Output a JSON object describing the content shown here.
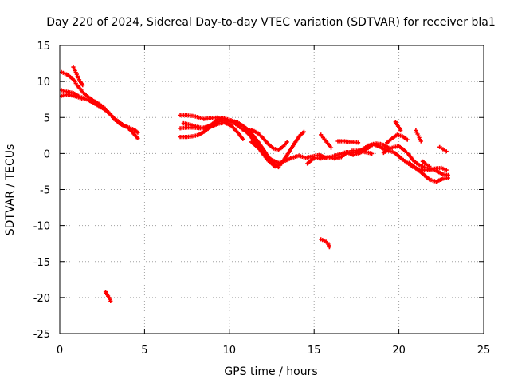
{
  "chart_data": {
    "type": "scatter",
    "title": "Day 220 of 2024, Sidereal Day-to-day VTEC variation (SDTVAR) for receiver bla1",
    "xlabel": "GPS time / hours",
    "ylabel": "SDTVAR / TECUs",
    "xlim": [
      0,
      25
    ],
    "ylim": [
      -25,
      15
    ],
    "xticks": [
      0,
      5,
      10,
      15,
      20,
      25
    ],
    "yticks": [
      15,
      10,
      5,
      0,
      -5,
      -10,
      -15,
      -20,
      -25
    ],
    "xtick_labels": [
      "0",
      "5",
      "10",
      "15",
      "20",
      "25"
    ],
    "ytick_labels": [
      "15",
      "10",
      "5",
      "0",
      "-5",
      "-10",
      "-15",
      "-20",
      "-25"
    ],
    "grid": true,
    "marker": "plus",
    "series": [
      {
        "name": "SDTVAR",
        "color": "#ff0000",
        "tracks": [
          [
            [
              0.1,
              11.3
            ],
            [
              0.4,
              11.0
            ],
            [
              0.7,
              10.5
            ],
            [
              0.9,
              10.0
            ],
            [
              1.0,
              9.5
            ],
            [
              1.2,
              9.0
            ],
            [
              1.4,
              8.4
            ],
            [
              1.7,
              7.8
            ],
            [
              2.0,
              7.3
            ],
            [
              2.3,
              6.9
            ],
            [
              2.6,
              6.4
            ],
            [
              2.8,
              5.9
            ],
            [
              3.0,
              5.4
            ],
            [
              3.2,
              4.8
            ],
            [
              3.5,
              4.2
            ],
            [
              3.8,
              3.8
            ],
            [
              4.1,
              3.6
            ],
            [
              4.4,
              3.3
            ],
            [
              4.6,
              2.9
            ]
          ],
          [
            [
              0.1,
              8.8
            ],
            [
              0.4,
              8.6
            ],
            [
              0.8,
              8.4
            ],
            [
              1.1,
              8.0
            ],
            [
              1.4,
              7.7
            ],
            [
              1.7,
              7.4
            ],
            [
              2.0,
              7.0
            ],
            [
              2.3,
              6.6
            ],
            [
              2.6,
              6.2
            ],
            [
              2.9,
              5.6
            ],
            [
              3.2,
              4.9
            ],
            [
              3.6,
              4.2
            ],
            [
              4.0,
              3.6
            ],
            [
              4.3,
              2.9
            ],
            [
              4.6,
              2.1
            ]
          ],
          [
            [
              0.1,
              8.0
            ],
            [
              0.5,
              8.2
            ],
            [
              0.8,
              8.0
            ],
            [
              1.0,
              7.9
            ],
            [
              1.3,
              7.6
            ]
          ],
          [
            [
              0.8,
              12.0
            ],
            [
              0.9,
              11.5
            ],
            [
              1.0,
              11.0
            ],
            [
              1.1,
              10.5
            ],
            [
              1.2,
              10.0
            ],
            [
              1.35,
              9.5
            ]
          ],
          [
            [
              2.7,
              -19.2
            ],
            [
              2.8,
              -19.6
            ],
            [
              2.9,
              -20.0
            ],
            [
              3.0,
              -20.5
            ]
          ],
          [
            [
              7.1,
              5.3
            ],
            [
              7.5,
              5.3
            ],
            [
              7.9,
              5.2
            ],
            [
              8.2,
              5.0
            ],
            [
              8.5,
              4.8
            ],
            [
              8.9,
              4.9
            ],
            [
              9.3,
              5.0
            ],
            [
              9.7,
              4.8
            ],
            [
              10.1,
              4.6
            ],
            [
              10.5,
              4.3
            ],
            [
              10.9,
              3.7
            ],
            [
              11.3,
              2.8
            ],
            [
              11.7,
              1.6
            ],
            [
              12.0,
              0.6
            ],
            [
              12.3,
              -0.5
            ],
            [
              12.6,
              -1.5
            ],
            [
              12.9,
              -1.9
            ]
          ],
          [
            [
              7.1,
              3.5
            ],
            [
              7.5,
              3.6
            ],
            [
              7.9,
              3.6
            ],
            [
              8.3,
              3.5
            ],
            [
              8.7,
              3.7
            ],
            [
              9.1,
              4.2
            ],
            [
              9.5,
              4.5
            ],
            [
              9.9,
              4.5
            ],
            [
              10.3,
              4.2
            ],
            [
              10.7,
              3.5
            ],
            [
              11.1,
              2.8
            ],
            [
              11.5,
              1.7
            ],
            [
              11.9,
              0.2
            ],
            [
              12.3,
              -1.0
            ],
            [
              12.7,
              -1.8
            ],
            [
              13.0,
              -1.6
            ],
            [
              13.3,
              -0.6
            ],
            [
              13.6,
              0.5
            ],
            [
              13.9,
              1.6
            ],
            [
              14.2,
              2.6
            ],
            [
              14.4,
              3.0
            ]
          ],
          [
            [
              7.1,
              2.3
            ],
            [
              7.5,
              2.3
            ],
            [
              7.9,
              2.4
            ],
            [
              8.2,
              2.6
            ],
            [
              8.5,
              3.0
            ],
            [
              8.9,
              3.7
            ],
            [
              9.3,
              4.1
            ],
            [
              9.7,
              4.3
            ],
            [
              10.1,
              3.9
            ],
            [
              10.5,
              2.9
            ],
            [
              10.8,
              2.0
            ]
          ],
          [
            [
              7.3,
              4.2
            ],
            [
              7.7,
              4.0
            ],
            [
              8.1,
              3.7
            ],
            [
              8.5,
              3.5
            ],
            [
              8.9,
              3.9
            ],
            [
              9.3,
              4.7
            ],
            [
              9.7,
              4.9
            ],
            [
              10.1,
              4.6
            ],
            [
              10.5,
              4.1
            ]
          ],
          [
            [
              10.9,
              3.3
            ],
            [
              11.3,
              3.3
            ],
            [
              11.7,
              2.8
            ],
            [
              12.0,
              2.1
            ],
            [
              12.3,
              1.3
            ],
            [
              12.6,
              0.7
            ],
            [
              12.9,
              0.5
            ],
            [
              13.2,
              1.0
            ],
            [
              13.4,
              1.6
            ]
          ],
          [
            [
              11.3,
              1.6
            ],
            [
              11.7,
              0.8
            ],
            [
              12.1,
              -0.1
            ],
            [
              12.5,
              -0.9
            ],
            [
              12.9,
              -1.3
            ],
            [
              13.3,
              -1.0
            ],
            [
              13.7,
              -0.6
            ],
            [
              14.1,
              -0.3
            ],
            [
              14.5,
              -0.6
            ],
            [
              14.9,
              -0.4
            ],
            [
              15.3,
              -0.2
            ],
            [
              15.7,
              -0.6
            ],
            [
              16.1,
              -0.4
            ],
            [
              16.5,
              -0.1
            ],
            [
              16.9,
              0.2
            ],
            [
              17.3,
              -0.2
            ],
            [
              17.7,
              0.1
            ],
            [
              18.1,
              0.6
            ],
            [
              18.5,
              1.3
            ],
            [
              18.9,
              0.9
            ],
            [
              19.3,
              0.4
            ],
            [
              19.7,
              0.2
            ],
            [
              20.1,
              -0.6
            ],
            [
              20.5,
              -1.3
            ],
            [
              20.9,
              -2.0
            ],
            [
              21.3,
              -2.3
            ],
            [
              21.7,
              -2.3
            ],
            [
              22.1,
              -2.1
            ],
            [
              22.5,
              -2.0
            ],
            [
              22.8,
              -2.3
            ]
          ],
          [
            [
              14.6,
              -1.4
            ],
            [
              15.0,
              -0.6
            ],
            [
              15.4,
              -0.7
            ],
            [
              15.8,
              -0.5
            ],
            [
              16.2,
              -0.7
            ],
            [
              16.6,
              -0.5
            ],
            [
              17.0,
              0.2
            ],
            [
              17.4,
              0.1
            ],
            [
              17.8,
              0.5
            ],
            [
              18.2,
              1.1
            ],
            [
              18.6,
              1.4
            ],
            [
              19.0,
              1.3
            ],
            [
              19.4,
              0.8
            ]
          ],
          [
            [
              15.4,
              2.6
            ],
            [
              15.6,
              2.0
            ],
            [
              15.8,
              1.4
            ],
            [
              16.0,
              0.8
            ]
          ],
          [
            [
              16.4,
              1.7
            ],
            [
              16.8,
              1.7
            ],
            [
              17.2,
              1.6
            ],
            [
              17.6,
              1.5
            ]
          ],
          [
            [
              17.2,
              0.4
            ],
            [
              17.6,
              0.4
            ],
            [
              18.0,
              0.2
            ],
            [
              18.4,
              0.0
            ]
          ],
          [
            [
              19.1,
              0.1
            ],
            [
              19.4,
              0.6
            ],
            [
              19.7,
              0.9
            ],
            [
              20.0,
              1.0
            ],
            [
              20.3,
              0.5
            ],
            [
              20.6,
              -0.2
            ],
            [
              20.9,
              -1.1
            ],
            [
              21.2,
              -1.6
            ],
            [
              21.5,
              -1.9
            ],
            [
              21.8,
              -2.1
            ],
            [
              22.2,
              -2.4
            ],
            [
              22.6,
              -2.9
            ],
            [
              22.9,
              -3.0
            ]
          ],
          [
            [
              19.3,
              1.5
            ],
            [
              19.6,
              2.1
            ],
            [
              19.9,
              2.6
            ],
            [
              20.2,
              2.4
            ],
            [
              20.5,
              1.9
            ]
          ],
          [
            [
              20.6,
              -1.3
            ],
            [
              21.0,
              -2.0
            ],
            [
              21.4,
              -2.8
            ],
            [
              21.8,
              -3.6
            ],
            [
              22.2,
              -3.9
            ],
            [
              22.6,
              -3.5
            ],
            [
              22.9,
              -3.4
            ]
          ],
          [
            [
              19.8,
              4.4
            ],
            [
              19.9,
              4.0
            ],
            [
              20.0,
              3.6
            ],
            [
              20.1,
              3.2
            ]
          ],
          [
            [
              21.0,
              3.2
            ],
            [
              21.1,
              2.7
            ],
            [
              21.2,
              2.2
            ],
            [
              21.3,
              1.7
            ]
          ],
          [
            [
              21.4,
              -1.1
            ],
            [
              21.6,
              -1.5
            ],
            [
              21.8,
              -1.8
            ]
          ],
          [
            [
              22.4,
              0.9
            ],
            [
              22.6,
              0.6
            ],
            [
              22.8,
              0.3
            ]
          ],
          [
            [
              15.4,
              -11.9
            ],
            [
              15.6,
              -12.1
            ],
            [
              15.8,
              -12.4
            ],
            [
              15.9,
              -13.0
            ]
          ]
        ]
      }
    ]
  }
}
